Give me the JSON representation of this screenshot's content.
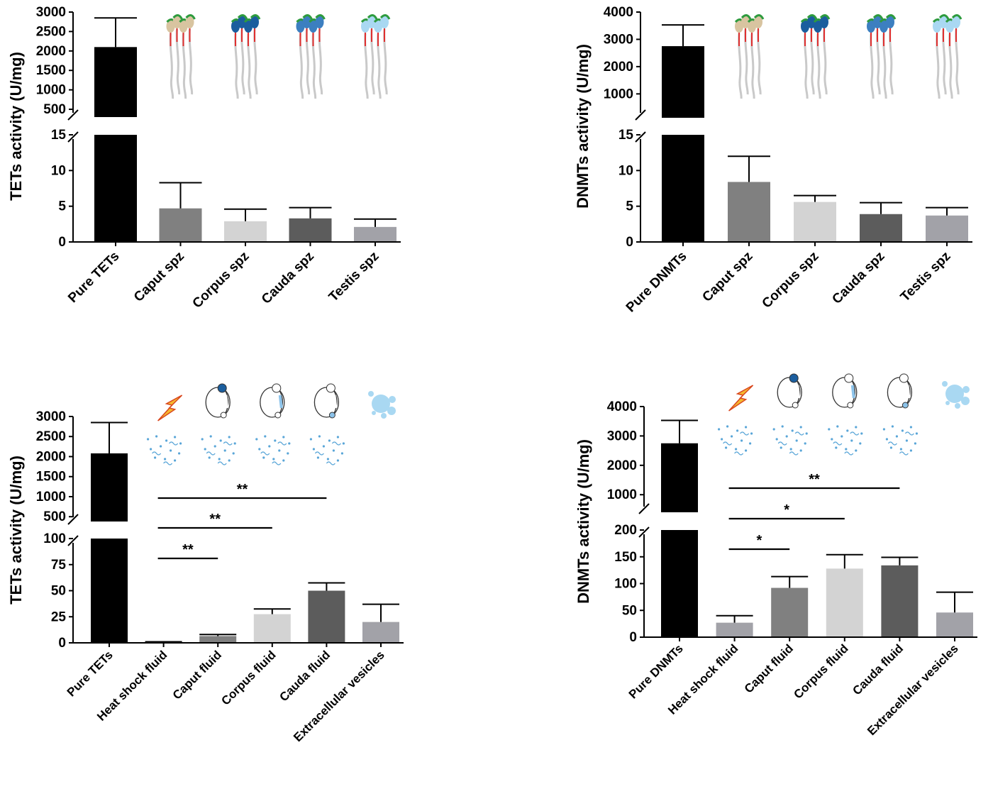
{
  "figure": {
    "panel_count": 4
  },
  "chart_data": [
    {
      "id": "panel-top-left",
      "type": "bar",
      "ylabel": "TETs activity (U/mg)",
      "categories": [
        "Pure TETs",
        "Caput spz",
        "Corpus spz",
        "Cauda spz",
        "Testis spz"
      ],
      "values": [
        2100,
        4.7,
        2.9,
        3.3,
        2.1
      ],
      "errors": [
        750,
        3.6,
        1.7,
        1.5,
        1.1
      ],
      "colors": [
        "#000000",
        "#808080",
        "#d3d3d3",
        "#5c5c5c",
        "#a2a2a8"
      ],
      "upper_axis": {
        "range": [
          300,
          3000
        ],
        "ticks": [
          500,
          1000,
          1500,
          2000,
          2500,
          3000
        ]
      },
      "lower_axis": {
        "range": [
          0,
          15
        ],
        "ticks": [
          0,
          5,
          10,
          15
        ]
      },
      "icons": [
        "",
        "sperm-group-icon",
        "sperm-group-icon",
        "sperm-group-icon",
        "sperm-group-icon"
      ],
      "significance": []
    },
    {
      "id": "panel-top-right",
      "type": "bar",
      "ylabel": "DNMTs activity (U/mg)",
      "categories": [
        "Pure DNMTs",
        "Caput spz",
        "Corpus spz",
        "Cauda spz",
        "Testis spz"
      ],
      "values": [
        2750,
        8.4,
        5.6,
        3.9,
        3.7
      ],
      "errors": [
        780,
        3.6,
        0.9,
        1.6,
        1.1
      ],
      "colors": [
        "#000000",
        "#808080",
        "#d3d3d3",
        "#5c5c5c",
        "#a2a2a8"
      ],
      "upper_axis": {
        "range": [
          150,
          4000
        ],
        "ticks": [
          1000,
          2000,
          3000,
          4000
        ]
      },
      "lower_axis": {
        "range": [
          0,
          15
        ],
        "ticks": [
          0,
          5,
          10,
          15
        ]
      },
      "icons": [
        "",
        "sperm-group-icon",
        "sperm-group-icon",
        "sperm-group-icon",
        "sperm-group-icon"
      ],
      "significance": []
    },
    {
      "id": "panel-bottom-left",
      "type": "bar",
      "ylabel": "TETs activity (U/mg)",
      "categories": [
        "Pure TETs",
        "Heat shock fluid",
        "Caput fluid",
        "Corpus fluid",
        "Cauda fluid",
        "Extracellular vesicles"
      ],
      "values": [
        2080,
        0.5,
        6.5,
        27.5,
        50,
        20
      ],
      "errors": [
        770,
        0.5,
        1.5,
        5,
        7.5,
        17
      ],
      "colors": [
        "#000000",
        "#a2a2a8",
        "#808080",
        "#d3d3d3",
        "#5c5c5c",
        "#a2a2a8"
      ],
      "upper_axis": {
        "range": [
          380,
          3000
        ],
        "ticks": [
          500,
          1000,
          1500,
          2000,
          2500,
          3000
        ]
      },
      "lower_axis": {
        "range": [
          0,
          100
        ],
        "ticks": [
          0,
          25,
          50,
          75,
          100
        ]
      },
      "icons": [
        "",
        "heat-shock-icon",
        "epididymis-icon",
        "epididymis-icon",
        "epididymis-icon",
        "vesicles-icon"
      ],
      "significance": [
        {
          "from": 1,
          "to": 2,
          "label": "**"
        },
        {
          "from": 1,
          "to": 3,
          "label": "**"
        },
        {
          "from": 1,
          "to": 4,
          "label": "**"
        }
      ]
    },
    {
      "id": "panel-bottom-right",
      "type": "bar",
      "ylabel": "DNMTs activity (U/mg)",
      "categories": [
        "Pure DNMTs",
        "Heat shock fluid",
        "Caput fluid",
        "Corpus fluid",
        "Cauda fluid",
        "Extracellular vesicles"
      ],
      "values": [
        2750,
        27,
        92,
        128,
        134,
        46
      ],
      "errors": [
        780,
        13,
        21,
        26,
        15,
        38
      ],
      "colors": [
        "#000000",
        "#a2a2a8",
        "#808080",
        "#d3d3d3",
        "#5c5c5c",
        "#a2a2a8"
      ],
      "upper_axis": {
        "range": [
          450,
          4000
        ],
        "ticks": [
          1000,
          2000,
          3000,
          4000
        ]
      },
      "lower_axis": {
        "range": [
          0,
          200
        ],
        "ticks": [
          0,
          50,
          100,
          150,
          200
        ]
      },
      "icons": [
        "",
        "heat-shock-icon",
        "epididymis-icon",
        "epididymis-icon",
        "epididymis-icon",
        "vesicles-icon"
      ],
      "significance": [
        {
          "from": 1,
          "to": 2,
          "label": "*"
        },
        {
          "from": 1,
          "to": 3,
          "label": "*"
        },
        {
          "from": 1,
          "to": 4,
          "label": "**"
        }
      ]
    }
  ]
}
